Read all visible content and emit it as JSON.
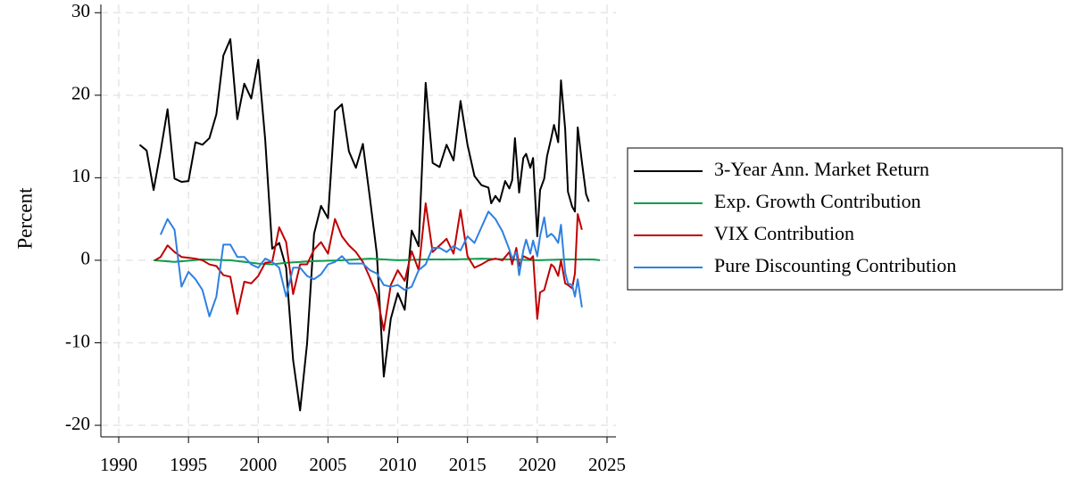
{
  "chart_data": {
    "type": "line",
    "y_label": "Percent",
    "xlim": [
      1988.72,
      2025.64
    ],
    "ylim": [
      -21.4,
      31.0
    ],
    "xticks": [
      1990,
      1995,
      2000,
      2005,
      2010,
      2015,
      2020,
      2025
    ],
    "yticks": [
      -20,
      -10,
      0,
      10,
      20,
      30
    ],
    "grid": true,
    "legend": "right",
    "series": [
      {
        "name": "3-Year Ann. Market Return",
        "color": "#000000",
        "x": [
          1991.5,
          1992.0,
          1992.5,
          1993.0,
          1993.5,
          1994.0,
          1994.5,
          1995.0,
          1995.5,
          1996.0,
          1996.5,
          1997.0,
          1997.5,
          1998.0,
          1998.5,
          1999.0,
          1999.5,
          2000.0,
          2000.5,
          2001.0,
          2001.5,
          2002.0,
          2002.5,
          2003.0,
          2003.5,
          2004.0,
          2004.5,
          2005.0,
          2005.5,
          2006.0,
          2006.5,
          2007.0,
          2007.5,
          2008.0,
          2008.5,
          2009.0,
          2009.5,
          2010.0,
          2010.5,
          2011.0,
          2011.5,
          2012.0,
          2012.5,
          2013.0,
          2013.5,
          2014.0,
          2014.5,
          2015.0,
          2015.5,
          2016.0,
          2016.5,
          2016.7,
          2017.0,
          2017.3,
          2017.7,
          2018.0,
          2018.2,
          2018.4,
          2018.7,
          2019.0,
          2019.2,
          2019.5,
          2019.7,
          2020.0,
          2020.2,
          2020.5,
          2020.7,
          2021.0,
          2021.2,
          2021.5,
          2021.7,
          2022.0,
          2022.2,
          2022.5,
          2022.7,
          2022.9,
          2023.2,
          2023.5,
          2023.7
        ],
        "values": [
          14.0,
          13.3,
          8.5,
          13.2,
          18.3,
          9.9,
          9.5,
          9.6,
          14.3,
          14.0,
          14.8,
          17.7,
          24.8,
          26.8,
          17.1,
          21.4,
          19.6,
          24.3,
          14.6,
          1.4,
          2.1,
          -0.9,
          -12.1,
          -18.2,
          -10.1,
          3.2,
          6.6,
          5.1,
          18.1,
          18.9,
          13.2,
          11.2,
          14.1,
          7.6,
          0.8,
          -14.1,
          -7.1,
          -4.0,
          -6.0,
          3.6,
          1.7,
          21.5,
          11.8,
          11.3,
          14.0,
          12.1,
          19.3,
          14.0,
          10.2,
          9.1,
          8.8,
          6.9,
          7.8,
          7.1,
          9.6,
          8.7,
          9.7,
          14.8,
          8.2,
          12.4,
          12.9,
          11.2,
          12.4,
          2.9,
          8.5,
          9.9,
          12.6,
          14.8,
          16.4,
          14.3,
          21.8,
          15.9,
          8.3,
          6.5,
          5.9,
          16.1,
          11.9,
          8.0,
          7.1
        ]
      },
      {
        "name": "Exp. Growth Contribution",
        "color": "#0a9e4a",
        "x": [
          1992.5,
          1994,
          1996,
          1998,
          2000,
          2001,
          2002,
          2004,
          2006,
          2008,
          2010,
          2012,
          2014,
          2016,
          2018,
          2020,
          2022,
          2024,
          2024.5
        ],
        "values": [
          0.0,
          -0.2,
          0.1,
          0.0,
          -0.4,
          -0.5,
          -0.3,
          -0.1,
          0.0,
          0.2,
          0.0,
          0.1,
          0.1,
          0.2,
          0.1,
          0.0,
          0.1,
          0.1,
          0.0
        ]
      },
      {
        "name": "VIX Contribution",
        "color": "#c00000",
        "x": [
          1992.6,
          1993.0,
          1993.5,
          1994.0,
          1994.5,
          1995.0,
          1995.5,
          1996.0,
          1996.5,
          1997.0,
          1997.5,
          1998.0,
          1998.5,
          1999.0,
          1999.5,
          2000.0,
          2000.5,
          2001.0,
          2001.5,
          2002.0,
          2002.5,
          2003.0,
          2003.5,
          2004.0,
          2004.5,
          2005.0,
          2005.5,
          2006.0,
          2006.5,
          2007.0,
          2007.5,
          2008.0,
          2008.5,
          2009.0,
          2009.5,
          2010.0,
          2010.5,
          2011.0,
          2011.5,
          2012.0,
          2012.5,
          2013.0,
          2013.5,
          2014.0,
          2014.5,
          2015.0,
          2015.5,
          2016.0,
          2016.5,
          2017.0,
          2017.5,
          2018.0,
          2018.2,
          2018.5,
          2018.7,
          2019.0,
          2019.5,
          2019.7,
          2020.0,
          2020.2,
          2020.5,
          2021.0,
          2021.2,
          2021.5,
          2021.7,
          2022.0,
          2022.2,
          2022.5,
          2022.7,
          2022.9,
          2023.2
        ],
        "values": [
          0.0,
          0.4,
          1.8,
          1.0,
          0.4,
          0.3,
          0.2,
          0.0,
          -0.5,
          -0.7,
          -1.8,
          -2.0,
          -6.5,
          -2.6,
          -2.8,
          -1.9,
          -0.3,
          -0.2,
          4.0,
          2.2,
          -4.1,
          -0.5,
          -0.5,
          1.3,
          2.2,
          0.8,
          5.0,
          2.9,
          1.8,
          1.0,
          -0.2,
          -2.1,
          -4.2,
          -8.5,
          -3.0,
          -1.2,
          -2.5,
          1.1,
          -1.2,
          6.9,
          1.0,
          1.8,
          2.6,
          0.8,
          6.1,
          0.5,
          -0.9,
          -0.5,
          0.0,
          0.2,
          0.0,
          1.0,
          -0.5,
          1.5,
          -0.7,
          0.5,
          0.1,
          0.5,
          -7.1,
          -3.9,
          -3.6,
          -0.5,
          -0.8,
          -1.9,
          0.0,
          -2.8,
          -3.0,
          -3.4,
          -1.6,
          5.6,
          3.7
        ]
      },
      {
        "name": "Pure Discounting Contribution",
        "color": "#2f80e0",
        "x": [
          1993.0,
          1993.5,
          1994.0,
          1994.5,
          1995.0,
          1995.5,
          1996.0,
          1996.5,
          1997.0,
          1997.5,
          1998.0,
          1998.5,
          1999.0,
          1999.5,
          2000.0,
          2000.5,
          2001.0,
          2001.5,
          2002.0,
          2002.5,
          2003.0,
          2003.5,
          2004.0,
          2004.5,
          2005.0,
          2005.5,
          2006.0,
          2006.5,
          2007.0,
          2007.5,
          2008.0,
          2008.5,
          2009.0,
          2009.5,
          2010.0,
          2010.5,
          2011.0,
          2011.5,
          2012.0,
          2012.5,
          2013.0,
          2013.5,
          2014.0,
          2014.5,
          2015.0,
          2015.5,
          2016.0,
          2016.5,
          2017.0,
          2017.5,
          2018.0,
          2018.2,
          2018.5,
          2018.7,
          2019.0,
          2019.2,
          2019.5,
          2019.7,
          2020.0,
          2020.2,
          2020.5,
          2020.7,
          2021.0,
          2021.2,
          2021.5,
          2021.7,
          2022.0,
          2022.2,
          2022.5,
          2022.7,
          2022.9,
          2023.2
        ],
        "values": [
          3.1,
          5.0,
          3.7,
          -3.2,
          -1.4,
          -2.3,
          -3.6,
          -6.8,
          -4.4,
          1.9,
          1.9,
          0.4,
          0.4,
          -0.5,
          -0.9,
          0.2,
          -0.2,
          -0.9,
          -4.4,
          -0.9,
          -0.9,
          -1.9,
          -2.3,
          -1.7,
          -0.5,
          -0.2,
          0.5,
          -0.4,
          -0.4,
          -0.4,
          -1.2,
          -1.6,
          -3.0,
          -3.2,
          -3.0,
          -3.6,
          -3.2,
          -1.2,
          -0.5,
          1.5,
          1.5,
          1.0,
          1.7,
          1.2,
          2.9,
          2.1,
          4.0,
          5.9,
          5.0,
          3.5,
          1.3,
          0.2,
          1.0,
          -1.8,
          1.2,
          2.5,
          0.8,
          2.4,
          0.5,
          2.9,
          5.2,
          2.8,
          3.2,
          2.9,
          2.1,
          4.3,
          -1.5,
          -2.8,
          -3.0,
          -4.4,
          -2.3,
          -5.7
        ]
      }
    ]
  }
}
